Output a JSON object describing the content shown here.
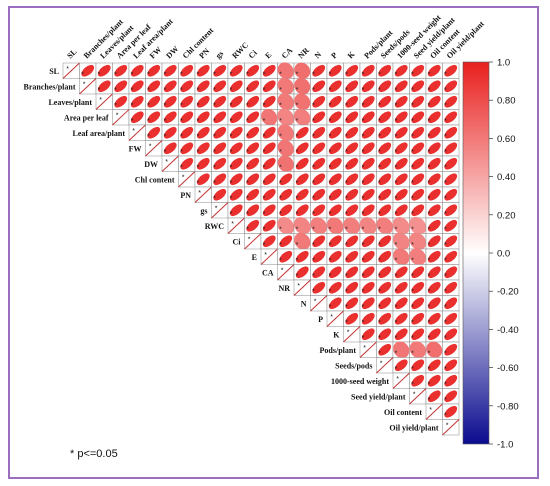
{
  "chart_data": {
    "type": "heatmap",
    "variables": [
      "SL",
      "Branches/plant",
      "Leaves/plant",
      "Area per leaf",
      "Leaf area/plant",
      "FW",
      "DW",
      "Chl content",
      "PN",
      "gs",
      "RWC",
      "Ci",
      "E",
      "CA",
      "NR",
      "N",
      "P",
      "K",
      "Pods/plant",
      "Seeds/pods",
      "1000-seed weight",
      "Seed yield/plant",
      "Oil content",
      "Oil yield/plant"
    ],
    "matrix_shape": "upper-triangle",
    "default_correlation": 0.93,
    "weaker_cells": [
      {
        "row": "SL",
        "col": "CA",
        "r": 0.62
      },
      {
        "row": "SL",
        "col": "NR",
        "r": 0.65
      },
      {
        "row": "Branches/plant",
        "col": "CA",
        "r": 0.6
      },
      {
        "row": "Branches/plant",
        "col": "NR",
        "r": 0.64
      },
      {
        "row": "Leaves/plant",
        "col": "CA",
        "r": 0.6
      },
      {
        "row": "Leaves/plant",
        "col": "NR",
        "r": 0.63
      },
      {
        "row": "Area per leaf",
        "col": "E",
        "r": 0.62
      },
      {
        "row": "Area per leaf",
        "col": "CA",
        "r": 0.55
      },
      {
        "row": "Area per leaf",
        "col": "NR",
        "r": 0.58
      },
      {
        "row": "Leaf area/plant",
        "col": "CA",
        "r": 0.6
      },
      {
        "row": "FW",
        "col": "CA",
        "r": 0.62
      },
      {
        "row": "DW",
        "col": "CA",
        "r": 0.63
      },
      {
        "row": "RWC",
        "col": "CA",
        "r": 0.52
      },
      {
        "row": "RWC",
        "col": "NR",
        "r": 0.55
      },
      {
        "row": "RWC",
        "col": "N",
        "r": 0.58
      },
      {
        "row": "RWC",
        "col": "P",
        "r": 0.6
      },
      {
        "row": "RWC",
        "col": "K",
        "r": 0.58
      },
      {
        "row": "RWC",
        "col": "Pods/plant",
        "r": 0.55
      },
      {
        "row": "RWC",
        "col": "Seeds/pods",
        "r": 0.58
      },
      {
        "row": "RWC",
        "col": "1000-seed weight",
        "r": 0.52
      },
      {
        "row": "RWC",
        "col": "Seed yield/plant",
        "r": 0.5
      },
      {
        "row": "Ci",
        "col": "NR",
        "r": 0.6
      },
      {
        "row": "Ci",
        "col": "1000-seed weight",
        "r": 0.55
      },
      {
        "row": "Ci",
        "col": "Seed yield/plant",
        "r": 0.55
      },
      {
        "row": "E",
        "col": "1000-seed weight",
        "r": 0.6
      },
      {
        "row": "E",
        "col": "Seed yield/plant",
        "r": 0.58
      },
      {
        "row": "Pods/plant",
        "col": "1000-seed weight",
        "r": 0.62
      },
      {
        "row": "Pods/plant",
        "col": "Seed yield/plant",
        "r": 0.6
      },
      {
        "row": "Pods/plant",
        "col": "Oil content",
        "r": 0.65
      }
    ],
    "diagonal_mark": "*",
    "significance_note": "* p<=0.05",
    "colorbar": {
      "range": [
        -1.0,
        1.0
      ],
      "ticks": [
        "1.0",
        "0.80",
        "0.60",
        "0.40",
        "0.20",
        "0.0",
        "-0.20",
        "-0.40",
        "-0.60",
        "-0.80",
        "-1.0"
      ],
      "colors": {
        "positive": "#e8201e",
        "neutral": "#ffffff",
        "negative": "#0b0b8f"
      }
    }
  },
  "footnote": "* p<=0.05"
}
